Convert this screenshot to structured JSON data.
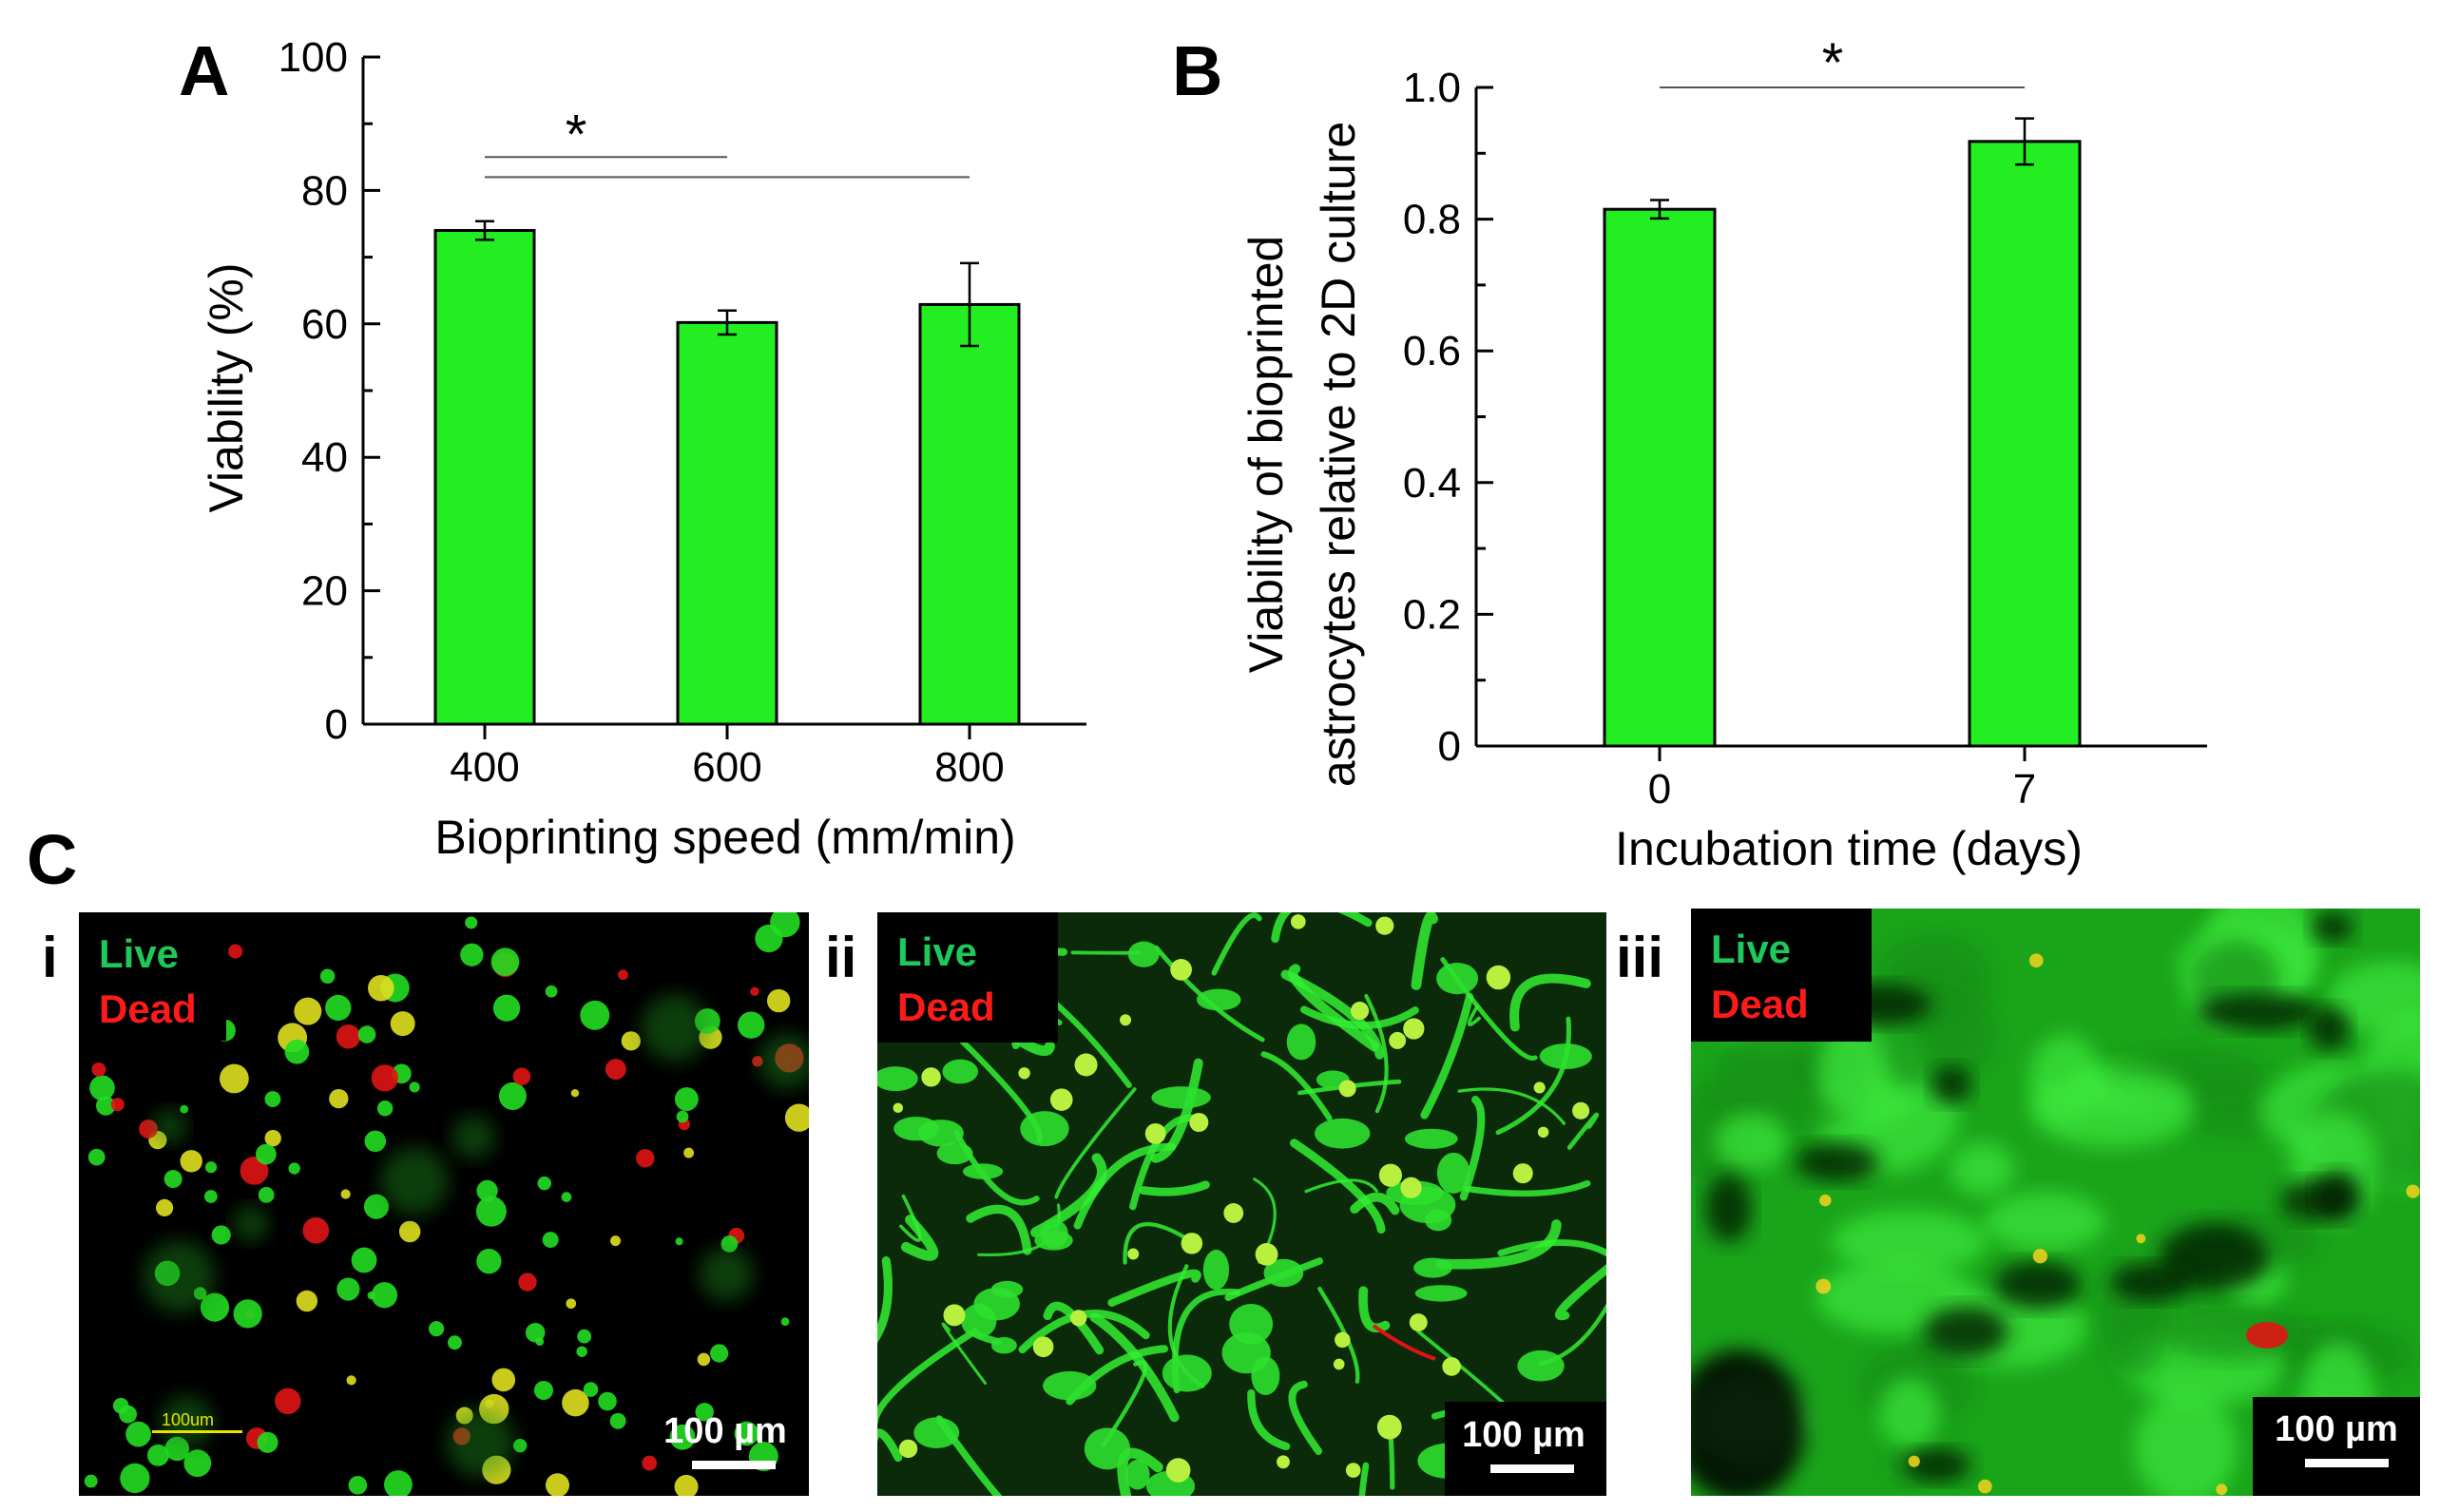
{
  "panels": {
    "a_letter": "A",
    "b_letter": "B",
    "c_letter": "C"
  },
  "chart_data": [
    {
      "type": "bar",
      "panel": "A",
      "categories": [
        "400",
        "600",
        "800"
      ],
      "values": [
        74,
        60.2,
        62.9
      ],
      "errors": [
        1.4,
        1.8,
        6.2
      ],
      "xlabel": "Bioprinting speed (mm/min)",
      "ylabel": "Viability (%)",
      "ylim": [
        0,
        100
      ],
      "yticks": [
        "0",
        "20",
        "40",
        "60",
        "80",
        "100"
      ],
      "bar_color": "#22ee22",
      "significance": {
        "label": "*",
        "brackets": [
          {
            "from": "400",
            "to": "600",
            "y": 85
          },
          {
            "from": "400",
            "to": "800",
            "y": 82
          }
        ]
      },
      "grid": false
    },
    {
      "type": "bar",
      "panel": "B",
      "categories": [
        "0",
        "7"
      ],
      "values": [
        0.815,
        0.918
      ],
      "errors": [
        0.014,
        0.035
      ],
      "xlabel": "Incubation time (days)",
      "ylabel_lines": [
        "Viability of bioprinted",
        "astrocytes relative to 2D culture"
      ],
      "ylim": [
        0,
        1.0
      ],
      "yticks": [
        "0",
        "0.2",
        "0.4",
        "0.6",
        "0.8",
        "1.0"
      ],
      "bar_color": "#22ee22",
      "significance": {
        "label": "*",
        "brackets": [
          {
            "from": "0",
            "to": "7",
            "y": 1.0
          }
        ]
      },
      "grid": false
    }
  ],
  "micrographs": [
    {
      "label": "i",
      "live": "Live",
      "dead": "Dead",
      "scale": "100 µm",
      "scale_small": "100um"
    },
    {
      "label": "ii",
      "live": "Live",
      "dead": "Dead",
      "scale": "100 µm"
    },
    {
      "label": "iii",
      "live": "Live",
      "dead": "Dead",
      "scale": "100 µm"
    }
  ],
  "colors": {
    "live": "#1ec85a",
    "dead": "#ff1a1a",
    "bar": "#22ee22",
    "micro_bg": "#000000"
  }
}
